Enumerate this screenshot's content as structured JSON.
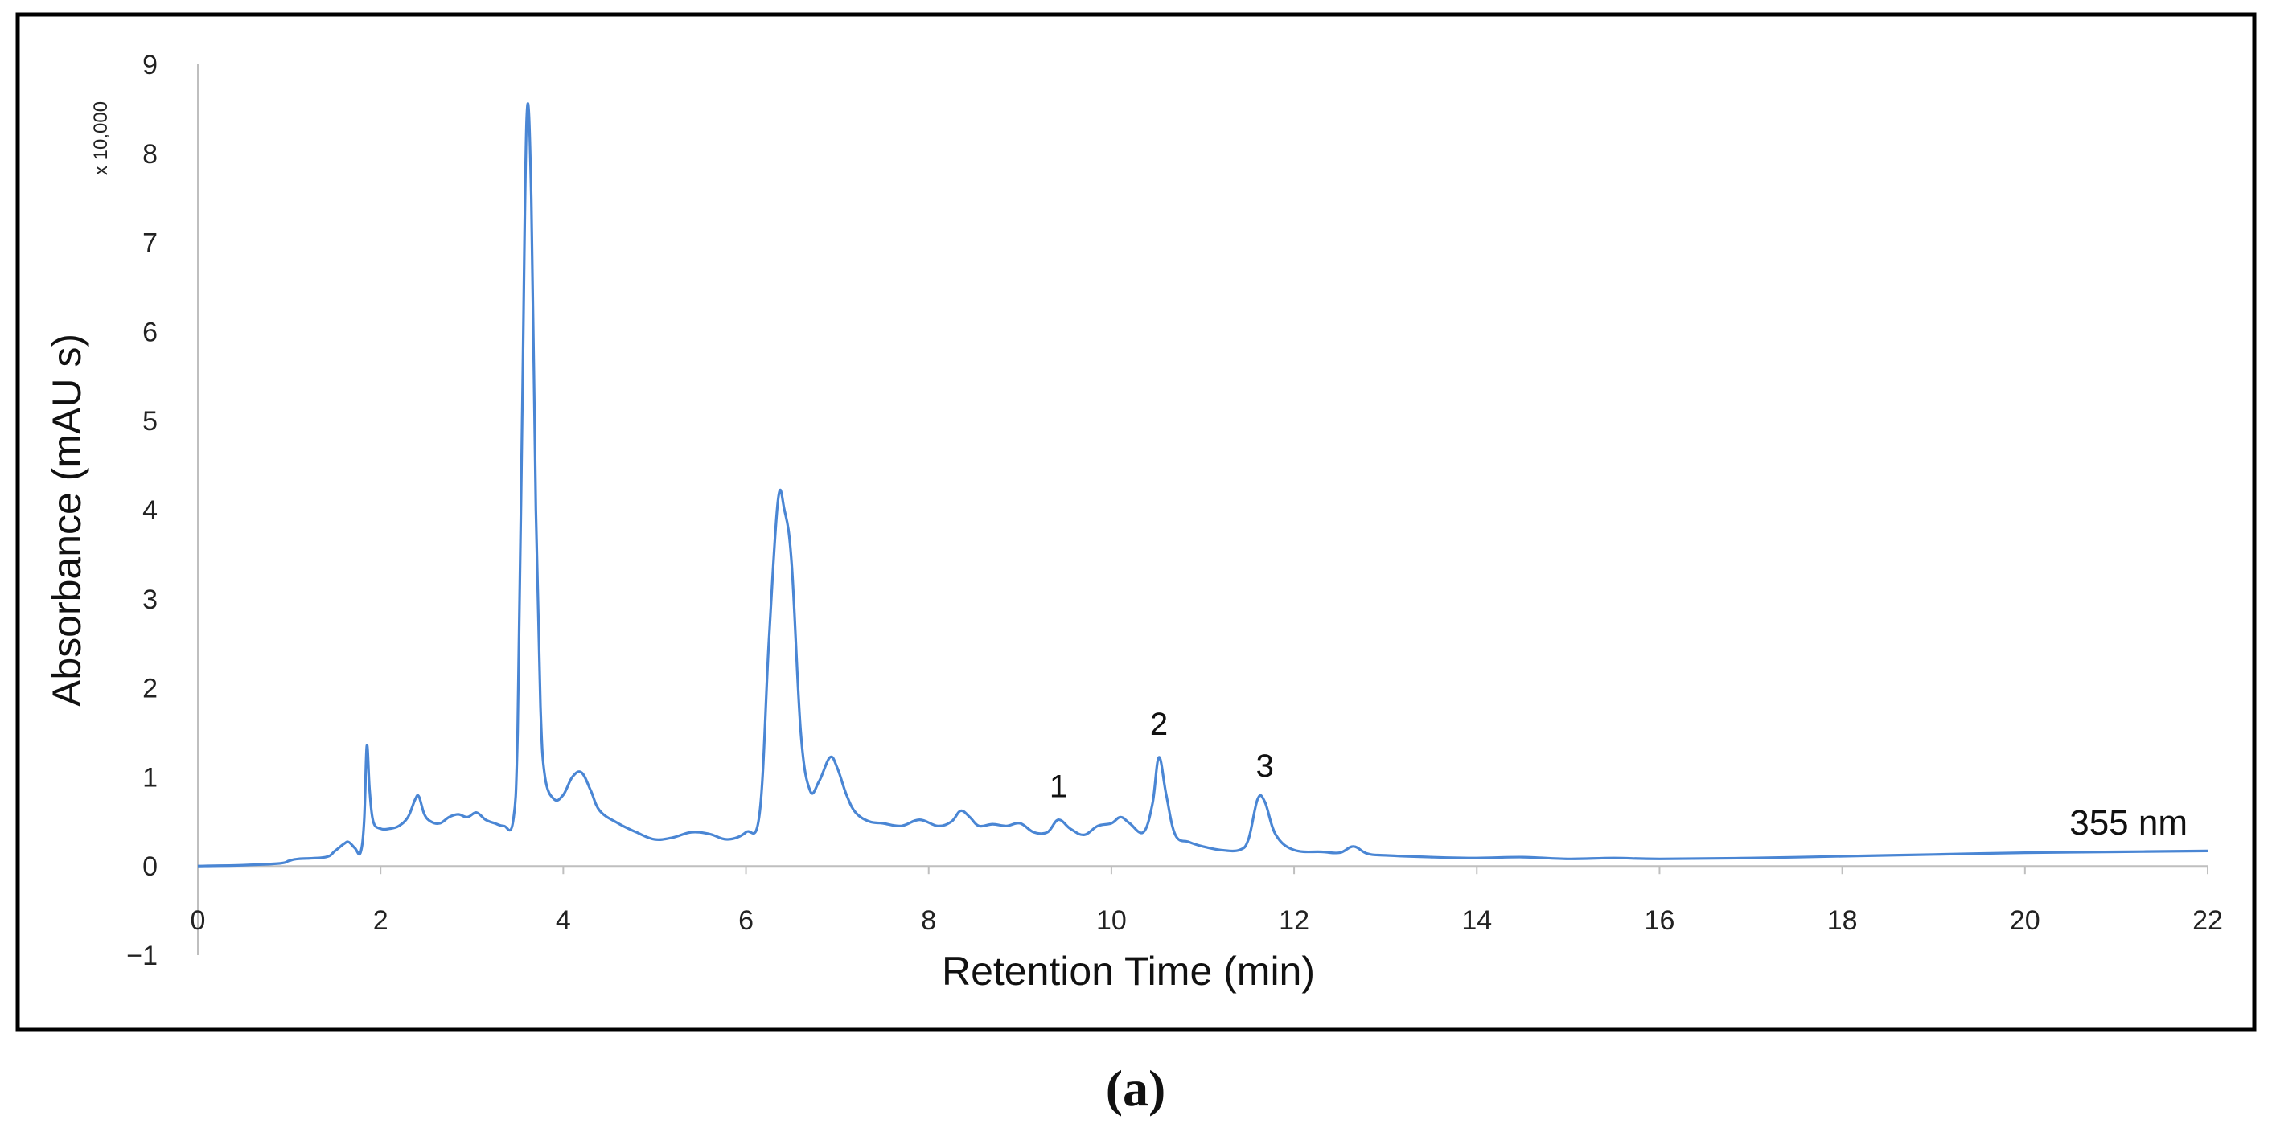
{
  "chart_data": {
    "type": "line",
    "xlabel": "Retention Time (min)",
    "ylabel": "Absorbance (mAU s)",
    "y_multiplier_label": "x 10,000",
    "xlim": [
      0,
      22
    ],
    "ylim": [
      -1,
      9
    ],
    "x_ticks": [
      "0",
      "2",
      "4",
      "6",
      "8",
      "10",
      "12",
      "14",
      "16",
      "18",
      "20",
      "22"
    ],
    "y_ticks": [
      "−1",
      "0",
      "1",
      "2",
      "3",
      "4",
      "5",
      "6",
      "7",
      "8",
      "9"
    ],
    "grid": false,
    "line_color": "#4a86d4",
    "series": [
      {
        "x": [
          0,
          0.5,
          0.9,
          1.0,
          1.1,
          1.4,
          1.5,
          1.6,
          1.65,
          1.72,
          1.78,
          1.82,
          1.85,
          1.88,
          1.92,
          2.0,
          2.1,
          2.2,
          2.3,
          2.38,
          2.42,
          2.48,
          2.55,
          2.65,
          2.75,
          2.85,
          2.95,
          3.05,
          3.15,
          3.25,
          3.35,
          3.45,
          3.5,
          3.55,
          3.6,
          3.65,
          3.7,
          3.75,
          3.8,
          3.9,
          4.0,
          4.1,
          4.2,
          4.3,
          4.4,
          4.6,
          4.8,
          5.0,
          5.2,
          5.4,
          5.6,
          5.8,
          6.0,
          6.15,
          6.25,
          6.35,
          6.42,
          6.5,
          6.6,
          6.7,
          6.8,
          6.92,
          7.0,
          7.1,
          7.2,
          7.35,
          7.5,
          7.7,
          7.9,
          8.1,
          8.25,
          8.35,
          8.45,
          8.55,
          8.7,
          8.85,
          9.0,
          9.15,
          9.3,
          9.42,
          9.55,
          9.7,
          9.85,
          10.0,
          10.1,
          10.2,
          10.35,
          10.45,
          10.52,
          10.6,
          10.7,
          10.85,
          11.0,
          11.2,
          11.4,
          11.5,
          11.6,
          11.68,
          11.8,
          12.0,
          12.3,
          12.5,
          12.65,
          12.8,
          13.0,
          13.5,
          14.0,
          14.5,
          15.0,
          15.5,
          16.0,
          17.0,
          18.0,
          19.0,
          20.0,
          21.0,
          22.0
        ],
        "y": [
          0.0,
          0.01,
          0.03,
          0.06,
          0.08,
          0.1,
          0.17,
          0.25,
          0.27,
          0.2,
          0.15,
          0.5,
          1.35,
          0.85,
          0.5,
          0.42,
          0.42,
          0.45,
          0.55,
          0.75,
          0.78,
          0.58,
          0.5,
          0.48,
          0.55,
          0.58,
          0.55,
          0.6,
          0.52,
          0.48,
          0.45,
          0.5,
          1.5,
          5.0,
          8.4,
          7.5,
          4.0,
          1.8,
          1.0,
          0.75,
          0.8,
          1.0,
          1.05,
          0.85,
          0.62,
          0.48,
          0.38,
          0.3,
          0.32,
          0.38,
          0.36,
          0.3,
          0.38,
          0.6,
          2.5,
          4.1,
          4.0,
          3.4,
          1.5,
          0.85,
          0.95,
          1.22,
          1.1,
          0.8,
          0.6,
          0.5,
          0.48,
          0.45,
          0.52,
          0.45,
          0.5,
          0.62,
          0.55,
          0.45,
          0.47,
          0.45,
          0.48,
          0.38,
          0.38,
          0.52,
          0.42,
          0.35,
          0.45,
          0.48,
          0.55,
          0.48,
          0.38,
          0.7,
          1.22,
          0.8,
          0.35,
          0.27,
          0.22,
          0.18,
          0.18,
          0.3,
          0.75,
          0.72,
          0.35,
          0.18,
          0.16,
          0.15,
          0.22,
          0.14,
          0.12,
          0.1,
          0.09,
          0.1,
          0.08,
          0.09,
          0.08,
          0.09,
          0.11,
          0.13,
          0.15,
          0.16,
          0.17
        ]
      }
    ],
    "annotations": [
      {
        "text": "1",
        "x": 9.42,
        "y": 0.52
      },
      {
        "text": "2",
        "x": 10.52,
        "y": 1.22
      },
      {
        "text": "3",
        "x": 11.68,
        "y": 0.75
      }
    ],
    "wavelength_label": "355 nm",
    "panel_caption": "(a)"
  }
}
